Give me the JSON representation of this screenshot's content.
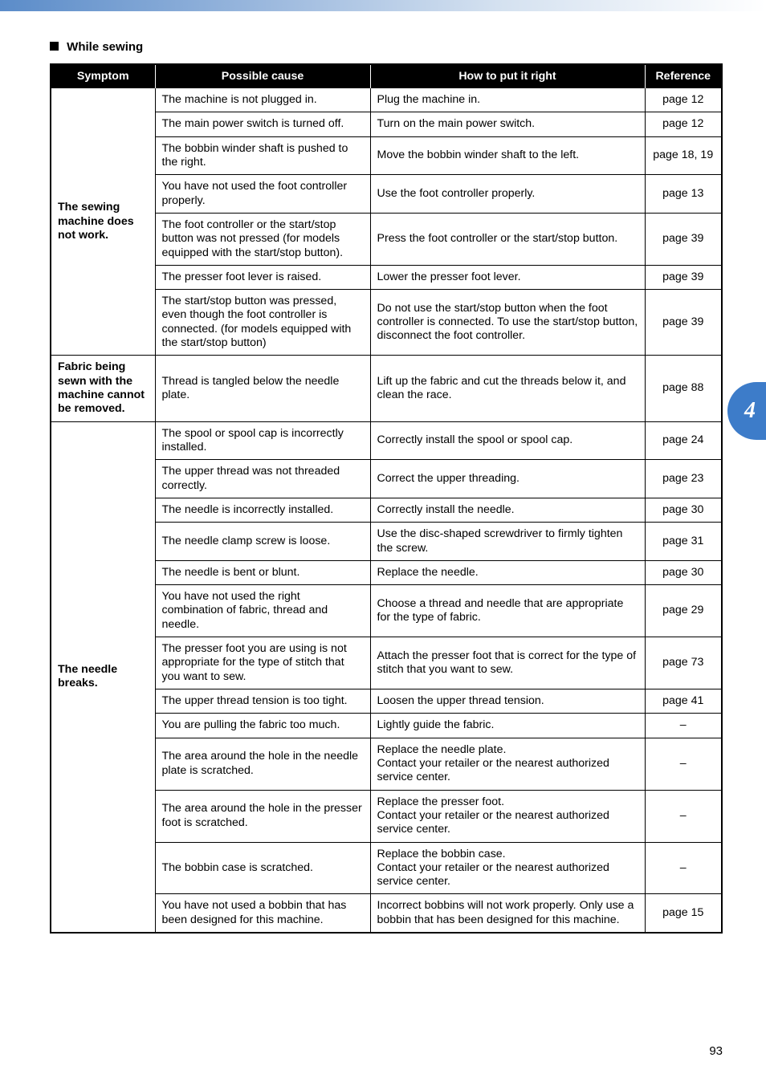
{
  "section_heading": "While sewing",
  "chapter_tab": "4",
  "page_number": "93",
  "headers": {
    "symptom": "Symptom",
    "cause": "Possible cause",
    "fix": "How to put it right",
    "ref": "Reference"
  },
  "groups": [
    {
      "symptom": "The sewing machine does not work.",
      "rows": [
        {
          "cause": "The machine is not plugged in.",
          "fix": "Plug the machine in.",
          "ref": "page 12"
        },
        {
          "cause": "The main power switch is turned off.",
          "fix": "Turn on the main power switch.",
          "ref": "page 12"
        },
        {
          "cause": "The bobbin winder shaft is pushed to the right.",
          "fix": "Move the bobbin winder shaft to the left.",
          "ref": "page 18, 19"
        },
        {
          "cause": "You have not used the foot controller properly.",
          "fix": "Use the foot controller properly.",
          "ref": "page 13"
        },
        {
          "cause": "The foot controller or the start/stop button was not pressed (for models equipped with the start/stop button).",
          "fix": "Press the foot controller or the start/stop button.",
          "ref": "page 39"
        },
        {
          "cause": "The presser foot lever is raised.",
          "fix": "Lower the presser foot lever.",
          "ref": "page 39"
        },
        {
          "cause": "The start/stop button was pressed, even though the foot controller is connected. (for models equipped with the start/stop button)",
          "fix": "Do not use the start/stop button when the foot controller is connected. To use the start/stop button, disconnect the foot controller.",
          "ref": "page 39"
        }
      ]
    },
    {
      "symptom": "Fabric being sewn with the machine cannot be removed.",
      "rows": [
        {
          "cause": "Thread is tangled below the needle plate.",
          "fix": "Lift up the fabric and cut the threads below it, and clean the race.",
          "ref": "page 88"
        }
      ]
    },
    {
      "symptom": "The needle breaks.",
      "rows": [
        {
          "cause": "The spool or spool cap is incorrectly installed.",
          "fix": "Correctly install the spool or spool cap.",
          "ref": "page 24"
        },
        {
          "cause": "The upper thread was not threaded correctly.",
          "fix": "Correct the upper threading.",
          "ref": "page 23"
        },
        {
          "cause": "The needle is incorrectly installed.",
          "fix": "Correctly install the needle.",
          "ref": "page 30"
        },
        {
          "cause": "The needle clamp screw is loose.",
          "fix": "Use the disc-shaped screwdriver to firmly tighten the screw.",
          "ref": "page 31"
        },
        {
          "cause": "The needle is bent or blunt.",
          "fix": "Replace the needle.",
          "ref": "page 30"
        },
        {
          "cause": "You have not used the right combination of fabric, thread and needle.",
          "fix": "Choose a thread and needle that are appropriate for the type of fabric.",
          "ref": "page 29"
        },
        {
          "cause": "The presser foot you are using is not appropriate for the type of stitch that you want to sew.",
          "fix": "Attach the presser foot that is correct for the type of stitch that you want to sew.",
          "ref": "page 73"
        },
        {
          "cause": "The upper thread tension is too tight.",
          "fix": "Loosen the upper thread tension.",
          "ref": "page 41"
        },
        {
          "cause": "You are pulling the fabric too much.",
          "fix": "Lightly guide the fabric.",
          "ref": "–"
        },
        {
          "cause": "The area around the hole in the needle plate is scratched.",
          "fix": "Replace the needle plate.\nContact your retailer or the nearest authorized service center.",
          "ref": "–"
        },
        {
          "cause": "The area around the hole in the presser foot is scratched.",
          "fix": "Replace the presser foot.\nContact your retailer or the nearest authorized service center.",
          "ref": "–"
        },
        {
          "cause": "The bobbin case is scratched.",
          "fix": "Replace the bobbin case.\nContact your retailer or the nearest authorized service center.",
          "ref": "–"
        },
        {
          "cause": "You have not used a bobbin that has been designed for this machine.",
          "fix": "Incorrect bobbins will not work properly. Only use a bobbin that has been designed for this machine.",
          "ref": "page 15"
        }
      ]
    }
  ]
}
